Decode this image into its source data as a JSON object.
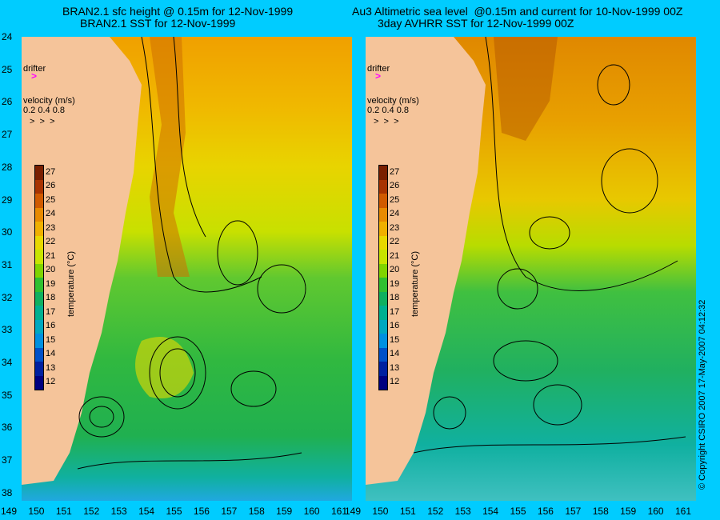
{
  "left_panel": {
    "title_line1": "BRAN2.1 sfc height @ 0.15m for 12-Nov-1999",
    "title_line2": "BRAN2.1 SST for 12-Nov-1999"
  },
  "right_panel": {
    "title_line1": "Au3 Altimetric sea level  @0.15m and current for 10-Nov-1999 00Z",
    "title_line2": "3day AVHRR SST for 12-Nov-1999 00Z"
  },
  "y_axis": {
    "latitude_labels": [
      "24",
      "25",
      "26",
      "27",
      "28",
      "29",
      "30",
      "31",
      "32",
      "33",
      "34",
      "35",
      "36",
      "37",
      "38"
    ]
  },
  "x_axis": {
    "longitude_labels": [
      "149",
      "150",
      "151",
      "152",
      "153",
      "154",
      "155",
      "156",
      "157",
      "158",
      "159",
      "160",
      "161"
    ]
  },
  "legend": {
    "drifter_label": "drifter",
    "drifter_marker": ">",
    "velocity_label": "velocity (m/s)",
    "velocity_scale": "0.2 0.4 0.8",
    "velocity_arrows": ">  >  >"
  },
  "colorbar": {
    "title": "temperature (°C)",
    "labels": [
      "27",
      "26",
      "25",
      "24",
      "23",
      "22",
      "21",
      "20",
      "19",
      "18",
      "17",
      "16",
      "15",
      "14",
      "13",
      "12"
    ],
    "colors": [
      "#7a1f00",
      "#a83300",
      "#d05a00",
      "#e88a00",
      "#f0b000",
      "#e8d800",
      "#c8e400",
      "#80d400",
      "#30c030",
      "#10b060",
      "#00b090",
      "#00a8c0",
      "#0090e0",
      "#0050c8",
      "#0020a0",
      "#000080"
    ]
  },
  "colors": {
    "background": "#00ccff",
    "land": "#f5c49a",
    "drifter": "#ff00ff"
  },
  "copyright": "© Copyright CSIRO 2007  17-May-2007 04:12:32"
}
